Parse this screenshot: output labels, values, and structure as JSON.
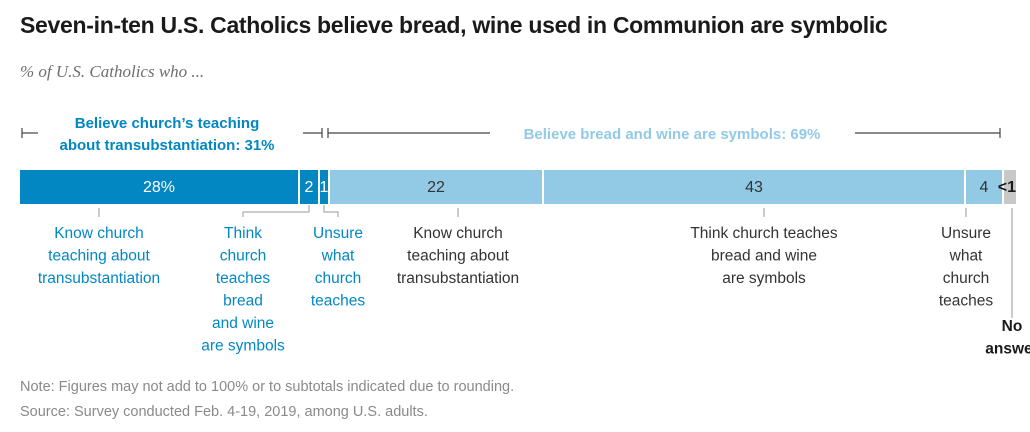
{
  "title": "Seven-in-ten U.S. Catholics believe bread, wine used in Communion are symbolic",
  "subtitle": "% of U.S. Catholics who ...",
  "note": "Note: Figures may not add to 100% or to subtotals indicated due to rounding.",
  "source": "Source: Survey conducted Feb. 4-19, 2019, among U.S. adults.",
  "colors": {
    "dark_blue": "#0287c3",
    "light_blue": "#92cae6",
    "gray": "#c8c8c8",
    "dark_text": "#333333"
  },
  "chart_data": {
    "type": "bar",
    "orientation": "horizontal-stacked",
    "groups": [
      {
        "label": "Believe church’s teaching",
        "label2": "about transubstantiation: 31%",
        "value": 31,
        "color": "#0287c3"
      },
      {
        "label": "Believe bread and wine are symbols: 69%",
        "value": 69,
        "color": "#92cae6"
      }
    ],
    "segments": [
      {
        "value": 28,
        "value_label": "28%",
        "label_lines": [
          "Know church",
          "teaching about",
          "transubstantiation"
        ],
        "group": 0,
        "color": "#0287c3",
        "text_color": "#ffffff"
      },
      {
        "value": 2,
        "value_label": "2",
        "label_lines": [
          "Think",
          "church",
          "teaches",
          "bread",
          "and wine",
          "are symbols"
        ],
        "group": 0,
        "color": "#0287c3",
        "text_color": "#ffffff"
      },
      {
        "value": 1,
        "value_label": "1",
        "label_lines": [
          "Unsure",
          "what",
          "church",
          "teaches"
        ],
        "group": 0,
        "color": "#0287c3",
        "text_color": "#ffffff"
      },
      {
        "value": 22,
        "value_label": "22",
        "label_lines": [
          "Know church",
          "teaching about",
          "transubstantiation"
        ],
        "group": 1,
        "color": "#92cae6",
        "text_color": "#333333"
      },
      {
        "value": 43,
        "value_label": "43",
        "label_lines": [
          "Think church teaches",
          "bread and wine",
          "are symbols"
        ],
        "group": 1,
        "color": "#92cae6",
        "text_color": "#333333"
      },
      {
        "value": 4,
        "value_label": "4",
        "label_lines": [
          "Unsure",
          "what",
          "church",
          "teaches"
        ],
        "group": 1,
        "color": "#92cae6",
        "text_color": "#333333"
      },
      {
        "value": 0.4,
        "value_label": "<1",
        "label_lines": [
          "No",
          "answer"
        ],
        "group": -1,
        "color": "#c8c8c8",
        "text_color": "#1a1a1a"
      }
    ]
  }
}
